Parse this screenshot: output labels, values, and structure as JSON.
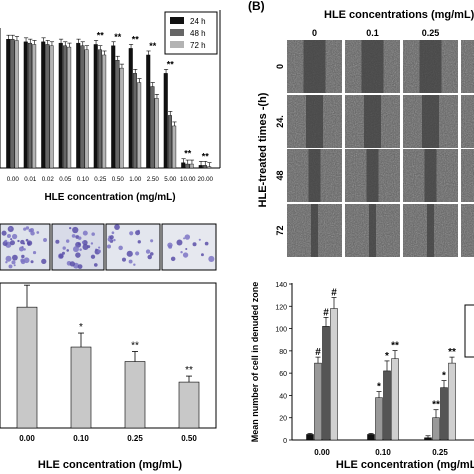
{
  "panel_b_label": "(B)",
  "micrograph": {
    "title": "HLE concentrations (mg/mL)",
    "row_title": "HLE-treated times -(h)",
    "columns": [
      "0",
      "0.1",
      "0.25"
    ],
    "rows": [
      "0",
      "24.",
      "48",
      "72"
    ]
  },
  "chart_data": [
    {
      "type": "bar",
      "xlabel": "HLE concentration (mg/mL)",
      "ylabel": "",
      "categories": [
        "0.00",
        "0.01",
        "0.02",
        "0.05",
        "0.10",
        "0.25",
        "0.50",
        "1.00",
        "2.50",
        "5.00",
        "10.00",
        "20.00"
      ],
      "ylim": [
        0,
        105
      ],
      "legend": [
        "24 h",
        "48 h",
        "72 h"
      ],
      "legend_position": "top-right",
      "series": [
        {
          "name": "24 h",
          "color": "#111111",
          "values": [
            98,
            96,
            96,
            95,
            95,
            94,
            93,
            91,
            86,
            72,
            4,
            2
          ]
        },
        {
          "name": "48 h",
          "color": "#666666",
          "values": [
            98,
            95,
            94,
            93,
            93,
            90,
            82,
            72,
            62,
            40,
            3,
            2
          ]
        },
        {
          "name": "72 h",
          "color": "#b3b3b3",
          "values": [
            97,
            94,
            93,
            92,
            90,
            86,
            76,
            65,
            53,
            32,
            3,
            1
          ]
        }
      ],
      "annotations": [
        "**",
        "**",
        "**",
        "**",
        "**",
        "**",
        "**",
        "**",
        "**",
        "**",
        "**",
        "**"
      ]
    },
    {
      "type": "bar",
      "xlabel": "HLE concentration (mg/mL)",
      "ylabel": "",
      "categories": [
        "0.00",
        "0.10",
        "0.25",
        "0.50"
      ],
      "ylim": [
        0,
        120
      ],
      "series": [
        {
          "color": "#c8c8c8",
          "values": [
            100,
            67,
            55,
            38
          ]
        }
      ],
      "annotations": [
        "",
        "*",
        "**",
        "**"
      ]
    },
    {
      "type": "bar",
      "xlabel": "HLE concentration (mg/mL)",
      "ylabel": "Mean number of cell in denuded zone",
      "categories": [
        "0.00",
        "0.10",
        "0.25"
      ],
      "ylim": [
        0,
        140
      ],
      "yticks": [
        0,
        20,
        40,
        60,
        80,
        100,
        120,
        140
      ],
      "series": [
        {
          "color": "#111111",
          "values": [
            5,
            5,
            2
          ]
        },
        {
          "color": "#999999",
          "values": [
            69,
            38,
            20
          ]
        },
        {
          "color": "#555555",
          "values": [
            102,
            62,
            47
          ]
        },
        {
          "color": "#d0d0d0",
          "values": [
            118,
            73,
            69
          ]
        }
      ],
      "annotations": [
        [
          "",
          "#",
          "#",
          "#"
        ],
        [
          "",
          "*",
          "*",
          "**"
        ],
        [
          "",
          "**",
          "*",
          "**"
        ]
      ]
    }
  ]
}
